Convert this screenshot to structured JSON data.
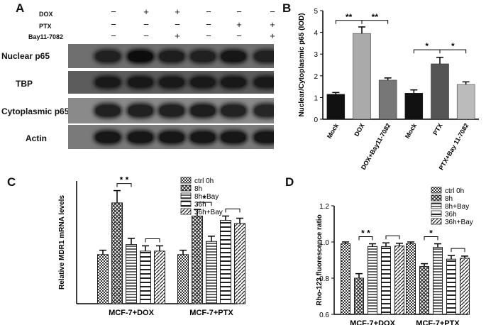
{
  "panel_a": {
    "label": "A",
    "treatments": [
      {
        "name": "DOX",
        "signs": [
          "−",
          "+",
          "+",
          "−",
          "−",
          "−"
        ]
      },
      {
        "name": "PTX",
        "signs": [
          "−",
          "−",
          "−",
          "−",
          "+",
          "+"
        ]
      },
      {
        "name": "Bay11-7082",
        "signs": [
          "−",
          "−",
          "+",
          "−",
          "−",
          "+"
        ]
      }
    ],
    "blots": [
      {
        "name": "Nuclear p65",
        "intensity": [
          0.55,
          0.95,
          0.6,
          0.55,
          0.75,
          0.55
        ]
      },
      {
        "name": "TBP",
        "intensity": [
          0.7,
          0.72,
          0.7,
          0.7,
          0.72,
          0.7
        ]
      },
      {
        "name": "Cytoplasmic p65",
        "intensity": [
          0.55,
          0.55,
          0.55,
          0.6,
          0.5,
          0.45
        ]
      },
      {
        "name": "Actin",
        "intensity": [
          0.75,
          0.75,
          0.75,
          0.75,
          0.75,
          0.75
        ]
      }
    ]
  },
  "chart_data": [
    {
      "panel": "B",
      "type": "bar",
      "ylabel": "Nuclear/Cytoplasmic p65 (IOD)",
      "ylim": [
        0,
        5
      ],
      "yticks": [
        "0",
        "1",
        "2",
        "3",
        "4",
        "5"
      ],
      "categories": [
        "Mock",
        "DOX",
        "DOX+Bay11-7082",
        "Mock",
        "PTX",
        "PTX+Bay 11-7082"
      ],
      "values": [
        1.15,
        3.95,
        1.8,
        1.2,
        2.55,
        1.6
      ],
      "errors": [
        0.08,
        0.3,
        0.1,
        0.15,
        0.3,
        0.12
      ],
      "bar_colors": [
        "#111111",
        "#aaaaaa",
        "#777777",
        "#111111",
        "#555555",
        "#bbbbbb"
      ],
      "significance": [
        {
          "from": 0,
          "to": 1,
          "label": "**"
        },
        {
          "from": 1,
          "to": 2,
          "label": "**"
        },
        {
          "from": 3,
          "to": 4,
          "label": "*"
        },
        {
          "from": 4,
          "to": 5,
          "label": "*"
        }
      ]
    },
    {
      "panel": "C",
      "type": "bar",
      "ylabel": "Relative MDR1 mRNA levels",
      "categories": [
        "MCF-7+DOX",
        "MCF-7+PTX"
      ],
      "series": [
        {
          "name": "ctrl 0h",
          "values": [
            1.12,
            1.12
          ],
          "errors": [
            0.1,
            0.1
          ]
        },
        {
          "name": "8h",
          "values": [
            2.3,
            2.0
          ],
          "errors": [
            0.28,
            0.15
          ]
        },
        {
          "name": "8h+Bay",
          "values": [
            1.35,
            1.42
          ],
          "errors": [
            0.14,
            0.12
          ]
        },
        {
          "name": "36h",
          "values": [
            1.2,
            1.9
          ],
          "errors": [
            0.12,
            0.1
          ]
        },
        {
          "name": "36h+Bay",
          "values": [
            1.2,
            1.83
          ],
          "errors": [
            0.12,
            0.12
          ]
        }
      ],
      "ymax": 2.8,
      "significance": [
        {
          "group": 0,
          "from": 1,
          "to": 2,
          "label": "* *"
        },
        {
          "group": 0,
          "from": 3,
          "to": 4,
          "label": ""
        },
        {
          "group": 1,
          "from": 1,
          "to": 2,
          "label": "*"
        },
        {
          "group": 1,
          "from": 3,
          "to": 4,
          "label": ""
        }
      ]
    },
    {
      "panel": "D",
      "type": "bar",
      "ylabel": "Rho-123 fluorescence ratio",
      "ylim": [
        0.6,
        1.2
      ],
      "yticks": [
        "0.6",
        "0.8",
        "1.0",
        "1.2"
      ],
      "categories": [
        "MCF-7+DOX",
        "MCF-7+PTX"
      ],
      "series": [
        {
          "name": "ctrl 0h",
          "values": [
            0.99,
            0.99
          ],
          "errors": [
            0.01,
            0.01
          ]
        },
        {
          "name": "8h",
          "values": [
            0.8,
            0.865
          ],
          "errors": [
            0.025,
            0.015
          ]
        },
        {
          "name": "8h+Bay",
          "values": [
            0.975,
            0.97
          ],
          "errors": [
            0.015,
            0.02
          ]
        },
        {
          "name": "36h",
          "values": [
            0.975,
            0.905
          ],
          "errors": [
            0.02,
            0.02
          ]
        },
        {
          "name": "36h+Bay",
          "values": [
            0.978,
            0.91
          ],
          "errors": [
            0.015,
            0.012
          ]
        }
      ],
      "significance": [
        {
          "group": 0,
          "from": 1,
          "to": 2,
          "label": "* *"
        },
        {
          "group": 0,
          "from": 3,
          "to": 4,
          "label": ""
        },
        {
          "group": 1,
          "from": 1,
          "to": 2,
          "label": "*"
        },
        {
          "group": 1,
          "from": 3,
          "to": 4,
          "label": ""
        }
      ]
    }
  ],
  "panel_labels": {
    "b": "B",
    "c": "C",
    "d": "D"
  }
}
